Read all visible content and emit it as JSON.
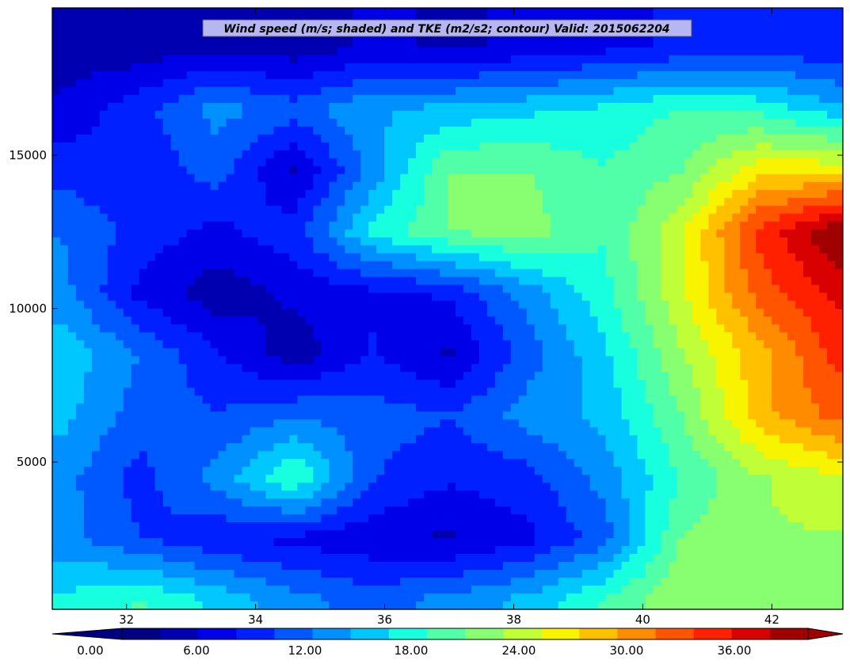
{
  "chart_data": {
    "type": "heatmap",
    "subtype": "filled-contour",
    "title": "Wind speed (m/s; shaded) and TKE (m2/s2; contour) Valid: 2015062204",
    "xlabel": "",
    "ylabel": "",
    "x_ticks": [
      32,
      34,
      36,
      38,
      40,
      42
    ],
    "x_tick_labels": [
      "32",
      "34",
      "36",
      "38",
      "40",
      "42"
    ],
    "xlim": [
      30.85,
      43.1
    ],
    "y_ticks": [
      5000,
      10000,
      15000
    ],
    "y_tick_labels": [
      "5000",
      "10000",
      "15000"
    ],
    "ylim": [
      200,
      19800
    ],
    "grid": false,
    "colorbar": {
      "levels": [
        0,
        2,
        4,
        6,
        8,
        10,
        12,
        14,
        16,
        18,
        20,
        22,
        24,
        26,
        28,
        30,
        32,
        34,
        36,
        38,
        40
      ],
      "tick_values": [
        0,
        6,
        12,
        18,
        24,
        30,
        36
      ],
      "tick_labels": [
        "0.00",
        "6.00",
        "12.00",
        "18.00",
        "24.00",
        "30.00",
        "36.00"
      ],
      "colors": [
        "#000080",
        "#0000b0",
        "#0000e8",
        "#0020ff",
        "#0058ff",
        "#0090ff",
        "#00c8ff",
        "#18ffe0",
        "#50ffa8",
        "#88ff70",
        "#c0ff38",
        "#f8f400",
        "#ffc000",
        "#ff8c00",
        "#ff5400",
        "#ff2000",
        "#d80000",
        "#a00000"
      ],
      "extend": "both",
      "placement": "bottom"
    },
    "field_samples": {
      "x": [
        31.0,
        32.2,
        33.4,
        34.6,
        35.8,
        37.0,
        38.2,
        39.4,
        40.6,
        41.8,
        43.0
      ],
      "y": [
        500,
        2500,
        4500,
        6500,
        8500,
        10500,
        12500,
        14500,
        16500,
        18500
      ],
      "values": [
        [
          16,
          18,
          15,
          12,
          10,
          12,
          14,
          18,
          22,
          22,
          22
        ],
        [
          12,
          9,
          7,
          6,
          5,
          4,
          6,
          10,
          20,
          22,
          22
        ],
        [
          12,
          8,
          12,
          18,
          9,
          7,
          8,
          12,
          18,
          22,
          24
        ],
        [
          14,
          10,
          9,
          11,
          10,
          9,
          12,
          14,
          20,
          28,
          32
        ],
        [
          15,
          11,
          7,
          3,
          7,
          4,
          10,
          15,
          22,
          28,
          34
        ],
        [
          12,
          6,
          3,
          5,
          6,
          7,
          12,
          17,
          24,
          32,
          36
        ],
        [
          11,
          8,
          6,
          8,
          16,
          20,
          21,
          18,
          24,
          34,
          40
        ],
        [
          8,
          7,
          10,
          4,
          12,
          20,
          20,
          18,
          20,
          26,
          26
        ],
        [
          5,
          8,
          12,
          10,
          13,
          14,
          15,
          16,
          18,
          17,
          14
        ],
        [
          3,
          3,
          4,
          3,
          5,
          4,
          5,
          6,
          7,
          8,
          7
        ]
      ]
    }
  }
}
